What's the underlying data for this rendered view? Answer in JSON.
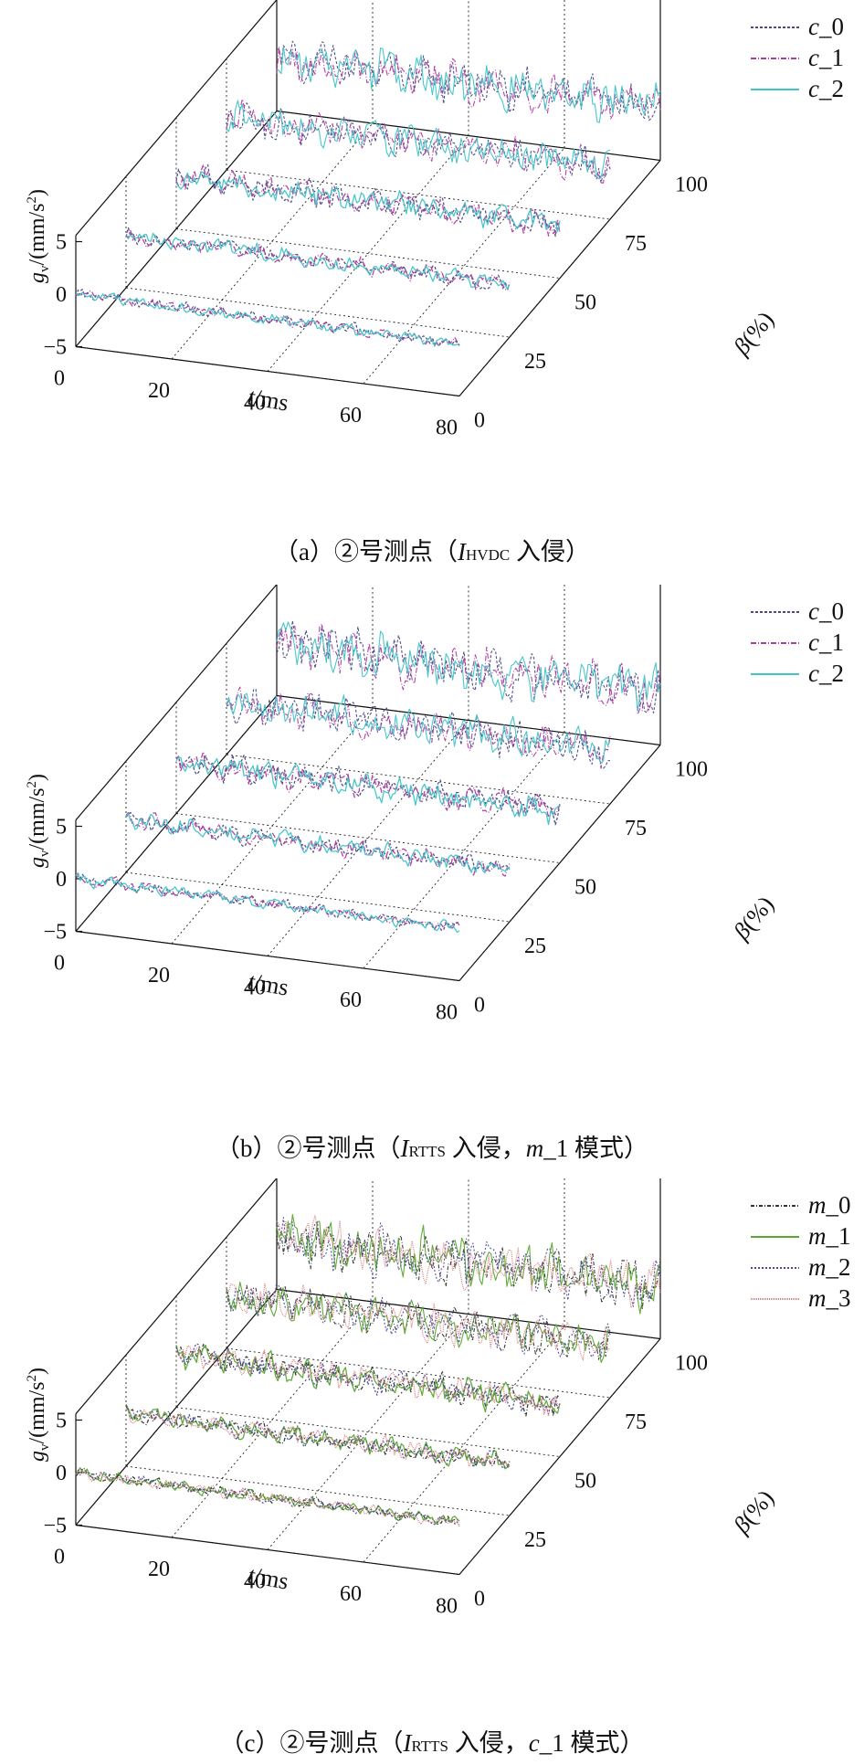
{
  "chart_data": [
    {
      "type": "line",
      "subtype": "3d-waterfall",
      "title": "",
      "caption": {
        "prefix": "（a）②号测点（",
        "var": "I",
        "sub": "HVDC",
        "suffix": " 入侵）"
      },
      "ylabel": "g_v/(mm/s²)",
      "xlabel": "t/ms",
      "zlabel": "β(%)",
      "xlim": [
        0,
        80
      ],
      "ylim": [
        -5,
        5
      ],
      "zlim": [
        0,
        100
      ],
      "x_ticks": [
        "0",
        "20",
        "40",
        "60",
        "80"
      ],
      "y_ticks": [
        "5",
        "0",
        "−5"
      ],
      "z_ticks": [
        "0",
        "25",
        "50",
        "75",
        "100"
      ],
      "beta_levels": [
        0,
        25,
        50,
        75,
        100
      ],
      "amplitude_by_beta": [
        1.0,
        1.5,
        2.2,
        3.0,
        4.0
      ],
      "legend": [
        "c_0",
        "c_1",
        "c_2"
      ],
      "series": [
        {
          "name": "c_0",
          "color": "#4a4a86",
          "dash": "3,2"
        },
        {
          "name": "c_1",
          "color": "#b23aa0",
          "dash": "6,2,1,2"
        },
        {
          "name": "c_2",
          "color": "#40c4c8",
          "dash": ""
        }
      ]
    },
    {
      "type": "line",
      "subtype": "3d-waterfall",
      "title": "",
      "caption": {
        "prefix": "（b）②号测点（",
        "var": "I",
        "sub": "RTTS",
        "suffix": " 入侵，",
        "var2": "m",
        "tail": "_1 模式）"
      },
      "ylabel": "g_v/(mm/s²)",
      "xlabel": "t/ms",
      "zlabel": "β(%)",
      "xlim": [
        0,
        80
      ],
      "ylim": [
        -5,
        5
      ],
      "zlim": [
        0,
        100
      ],
      "x_ticks": [
        "0",
        "20",
        "40",
        "60",
        "80"
      ],
      "y_ticks": [
        "5",
        "0",
        "−5"
      ],
      "z_ticks": [
        "0",
        "25",
        "50",
        "75",
        "100"
      ],
      "beta_levels": [
        0,
        25,
        50,
        75,
        100
      ],
      "amplitude_by_beta": [
        1.0,
        1.6,
        2.4,
        3.2,
        4.2
      ],
      "legend": [
        "c_0",
        "c_1",
        "c_2"
      ],
      "series": [
        {
          "name": "c_0",
          "color": "#4a4a86",
          "dash": "3,2"
        },
        {
          "name": "c_1",
          "color": "#b23aa0",
          "dash": "6,2,1,2"
        },
        {
          "name": "c_2",
          "color": "#40c4c8",
          "dash": ""
        }
      ]
    },
    {
      "type": "line",
      "subtype": "3d-waterfall",
      "title": "",
      "caption": {
        "prefix": "（c）②号测点（",
        "var": "I",
        "sub": "RTTS",
        "suffix": " 入侵，",
        "var2": "c",
        "tail": "_1 模式）"
      },
      "ylabel": "g_v/(mm/s²)",
      "xlabel": "t/ms",
      "zlabel": "β(%)",
      "xlim": [
        0,
        80
      ],
      "ylim": [
        -5,
        5
      ],
      "zlim": [
        0,
        100
      ],
      "x_ticks": [
        "0",
        "20",
        "40",
        "60",
        "80"
      ],
      "y_ticks": [
        "5",
        "0",
        "−5"
      ],
      "z_ticks": [
        "0",
        "25",
        "50",
        "75",
        "100"
      ],
      "beta_levels": [
        0,
        25,
        50,
        75,
        100
      ],
      "amplitude_by_beta": [
        1.0,
        1.6,
        2.4,
        3.3,
        4.5
      ],
      "legend": [
        "m_0",
        "m_1",
        "m_2",
        "m_3"
      ],
      "series": [
        {
          "name": "m_0",
          "color": "#333333",
          "dash": "4,2,1,2"
        },
        {
          "name": "m_1",
          "color": "#5aa832",
          "dash": ""
        },
        {
          "name": "m_2",
          "color": "#4a4a9c",
          "dash": "2,2"
        },
        {
          "name": "m_3",
          "color": "#d87a78",
          "dash": "1,1"
        }
      ]
    }
  ]
}
